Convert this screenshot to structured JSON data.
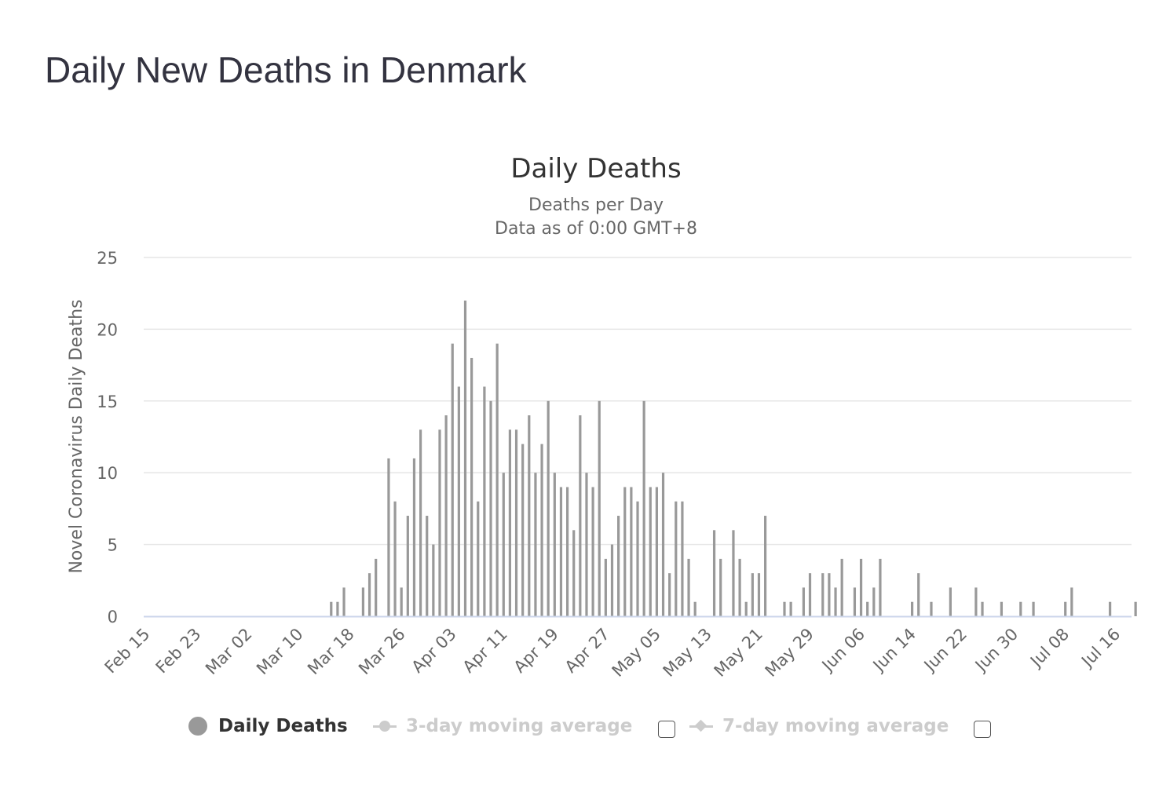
{
  "page": {
    "title": "Daily New Deaths in Denmark"
  },
  "chart_data": {
    "type": "bar",
    "title": "Daily Deaths",
    "subtitle_lines": [
      "Deaths per Day",
      "Data as of 0:00 GMT+8"
    ],
    "ylabel": "Novel Coronavirus Daily Deaths",
    "xlabel": "",
    "ylim": [
      0,
      25
    ],
    "yticks": [
      0,
      5,
      10,
      15,
      20,
      25
    ],
    "grid": true,
    "bar_color": "#999999",
    "x_start": "Feb 15",
    "x_tick_labels": [
      "Feb 15",
      "Feb 23",
      "Mar 02",
      "Mar 10",
      "Mar 18",
      "Mar 26",
      "Apr 03",
      "Apr 11",
      "Apr 19",
      "Apr 27",
      "May 05",
      "May 13",
      "May 21",
      "May 29",
      "Jun 06",
      "Jun 14",
      "Jun 22",
      "Jun 30",
      "Jul 08",
      "Jul 16"
    ],
    "series": [
      {
        "name": "Daily Deaths",
        "values": [
          0,
          0,
          0,
          0,
          0,
          0,
          0,
          0,
          0,
          0,
          0,
          0,
          0,
          0,
          0,
          0,
          0,
          0,
          0,
          0,
          0,
          0,
          0,
          0,
          0,
          0,
          0,
          0,
          0,
          1,
          1,
          2,
          0,
          0,
          2,
          3,
          4,
          0,
          11,
          8,
          2,
          7,
          11,
          13,
          7,
          5,
          13,
          14,
          19,
          16,
          22,
          18,
          8,
          16,
          15,
          19,
          10,
          13,
          13,
          12,
          14,
          10,
          12,
          15,
          10,
          9,
          9,
          6,
          14,
          10,
          9,
          15,
          4,
          5,
          7,
          9,
          9,
          8,
          15,
          9,
          9,
          10,
          3,
          8,
          8,
          4,
          1,
          0,
          0,
          6,
          4,
          0,
          6,
          4,
          1,
          3,
          3,
          7,
          0,
          0,
          1,
          1,
          0,
          2,
          3,
          0,
          3,
          3,
          2,
          4,
          0,
          2,
          4,
          1,
          2,
          4,
          0,
          0,
          0,
          0,
          1,
          3,
          0,
          1,
          0,
          0,
          2,
          0,
          0,
          0,
          2,
          1,
          0,
          0,
          1,
          0,
          0,
          1,
          0,
          1,
          0,
          0,
          0,
          0,
          1,
          2,
          0,
          0,
          0,
          0,
          0,
          1,
          0,
          0,
          0,
          1
        ]
      }
    ],
    "legend": [
      {
        "name": "Daily Deaths",
        "active": true
      },
      {
        "name": "3-day moving average",
        "active": false
      },
      {
        "name": "7-day moving average",
        "active": false
      }
    ],
    "legend_position": "bottom-center"
  }
}
